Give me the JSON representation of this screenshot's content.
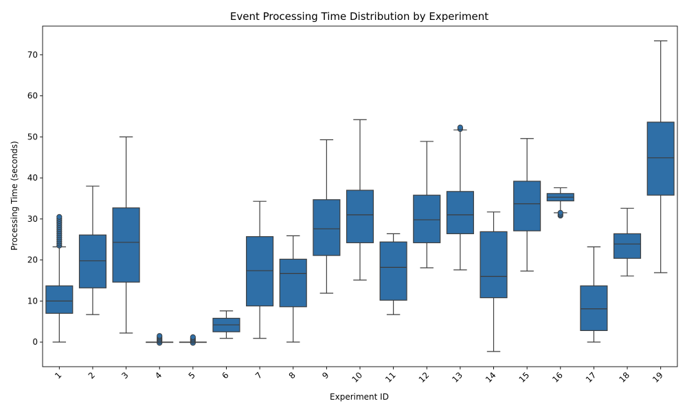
{
  "chart_data": {
    "type": "box",
    "title": "Event Processing Time Distribution by Experiment",
    "xlabel": "Experiment ID",
    "ylabel": "Processing Time (seconds)",
    "ylim": [
      -6,
      77
    ],
    "yticks": [
      0,
      10,
      20,
      30,
      40,
      50,
      60,
      70
    ],
    "grid": false,
    "box_color": "#2f6fa7",
    "line_color": "#3c3c3c",
    "categories": [
      "1",
      "2",
      "3",
      "4",
      "5",
      "6",
      "7",
      "8",
      "9",
      "10",
      "11",
      "12",
      "13",
      "14",
      "15",
      "16",
      "17",
      "18",
      "19"
    ],
    "boxes": [
      {
        "id": "1",
        "whisker_low": 0,
        "q1": 7,
        "median": 10,
        "q3": 13.7,
        "whisker_high": 23.2,
        "outliers": [
          23.5,
          24,
          24.5,
          25,
          25.5,
          26,
          26.5,
          27,
          27.5,
          28,
          28.5,
          29,
          29.5,
          30,
          30.5
        ]
      },
      {
        "id": "2",
        "whisker_low": 6.7,
        "q1": 13.2,
        "median": 19.8,
        "q3": 26.1,
        "whisker_high": 38,
        "outliers": []
      },
      {
        "id": "3",
        "whisker_low": 2.2,
        "q1": 14.6,
        "median": 24.3,
        "q3": 32.7,
        "whisker_high": 50,
        "outliers": []
      },
      {
        "id": "4",
        "whisker_low": 0,
        "q1": 0,
        "median": 0,
        "q3": 0,
        "whisker_high": 0,
        "outliers": [
          -0.2,
          0.3,
          0.6,
          0.9,
          1.2,
          1.5
        ]
      },
      {
        "id": "5",
        "whisker_low": 0,
        "q1": 0,
        "median": 0,
        "q3": 0,
        "whisker_high": 0,
        "outliers": [
          -0.2,
          0.3,
          0.6,
          0.9,
          1.2
        ]
      },
      {
        "id": "6",
        "whisker_low": 0.9,
        "q1": 2.5,
        "median": 4.2,
        "q3": 5.8,
        "whisker_high": 7.6,
        "outliers": []
      },
      {
        "id": "7",
        "whisker_low": 0.9,
        "q1": 8.8,
        "median": 17.4,
        "q3": 25.7,
        "whisker_high": 34.3,
        "outliers": []
      },
      {
        "id": "8",
        "whisker_low": 0,
        "q1": 8.6,
        "median": 16.7,
        "q3": 20.2,
        "whisker_high": 25.9,
        "outliers": []
      },
      {
        "id": "9",
        "whisker_low": 11.9,
        "q1": 21.1,
        "median": 27.6,
        "q3": 34.7,
        "whisker_high": 49.3,
        "outliers": []
      },
      {
        "id": "10",
        "whisker_low": 15.1,
        "q1": 24.2,
        "median": 31,
        "q3": 37,
        "whisker_high": 54.2,
        "outliers": []
      },
      {
        "id": "11",
        "whisker_low": 6.7,
        "q1": 10.2,
        "median": 18.2,
        "q3": 24.4,
        "whisker_high": 26.4,
        "outliers": []
      },
      {
        "id": "12",
        "whisker_low": 18.1,
        "q1": 24.2,
        "median": 29.8,
        "q3": 35.8,
        "whisker_high": 48.9,
        "outliers": []
      },
      {
        "id": "13",
        "whisker_low": 17.6,
        "q1": 26.4,
        "median": 31,
        "q3": 36.7,
        "whisker_high": 51.7,
        "outliers": [
          51.9,
          52.3
        ]
      },
      {
        "id": "14",
        "whisker_low": -2.3,
        "q1": 10.8,
        "median": 16,
        "q3": 26.9,
        "whisker_high": 31.7,
        "outliers": []
      },
      {
        "id": "15",
        "whisker_low": 17.3,
        "q1": 27.1,
        "median": 33.7,
        "q3": 39.2,
        "whisker_high": 49.6,
        "outliers": []
      },
      {
        "id": "16",
        "whisker_low": 31.5,
        "q1": 34.4,
        "median": 35.3,
        "q3": 36.2,
        "whisker_high": 37.6,
        "outliers": [
          30.8,
          31.1,
          31.5
        ]
      },
      {
        "id": "17",
        "whisker_low": 0,
        "q1": 2.8,
        "median": 8.1,
        "q3": 13.7,
        "whisker_high": 23.2,
        "outliers": []
      },
      {
        "id": "18",
        "whisker_low": 16.1,
        "q1": 20.4,
        "median": 23.9,
        "q3": 26.4,
        "whisker_high": 32.6,
        "outliers": []
      },
      {
        "id": "19",
        "whisker_low": 16.9,
        "q1": 35.8,
        "median": 44.9,
        "q3": 53.6,
        "whisker_high": 73.4,
        "outliers": []
      }
    ]
  }
}
